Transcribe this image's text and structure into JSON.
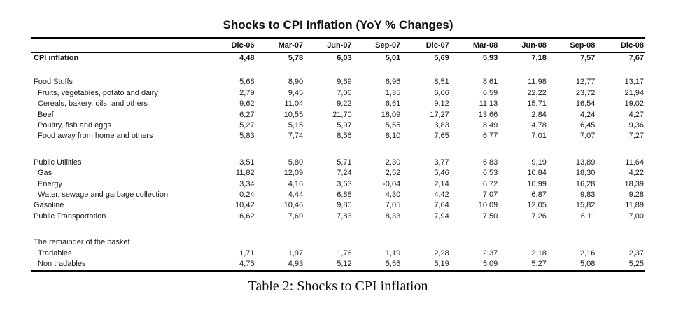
{
  "page": {
    "title": "Shocks to CPI Inflation (YoY % Changes)",
    "caption": "Table 2: Shocks to CPI inflation"
  },
  "chart_data": {
    "type": "table",
    "title": "Shocks to CPI Inflation (YoY % Changes)",
    "caption": "Table 2: Shocks to CPI inflation",
    "columns": [
      "Dic-06",
      "Mar-07",
      "Jun-07",
      "Sep-07",
      "Dic-07",
      "Mar-08",
      "Jun-08",
      "Sep-08",
      "Dic-08"
    ],
    "sections": [
      {
        "rows": [
          {
            "label": "CPI inflation",
            "bold": true,
            "indent": 0,
            "values": [
              "4,48",
              "5,78",
              "6,03",
              "5,01",
              "5,69",
              "5,93",
              "7,18",
              "7,57",
              "7,67"
            ]
          }
        ]
      },
      {
        "rows": [
          {
            "label": "Food Stuffs",
            "bold": false,
            "indent": 0,
            "values": [
              "5,68",
              "8,90",
              "9,69",
              "6,96",
              "8,51",
              "8,61",
              "11,98",
              "12,77",
              "13,17"
            ]
          },
          {
            "label": "Fruits, vegetables, potato and dairy",
            "bold": false,
            "indent": 1,
            "values": [
              "2,79",
              "9,45",
              "7,06",
              "1,35",
              "6,66",
              "6,59",
              "22,22",
              "23,72",
              "21,94"
            ]
          },
          {
            "label": "Cereals, bakery, oils, and others",
            "bold": false,
            "indent": 1,
            "values": [
              "9,62",
              "11,04",
              "9,22",
              "6,61",
              "9,12",
              "11,13",
              "15,71",
              "16,54",
              "19,02"
            ]
          },
          {
            "label": "Beef",
            "bold": false,
            "indent": 1,
            "values": [
              "6,27",
              "10,55",
              "21,70",
              "18,09",
              "17,27",
              "13,66",
              "2,84",
              "4,24",
              "4,27"
            ]
          },
          {
            "label": "Poultry, fish and eggs",
            "bold": false,
            "indent": 1,
            "values": [
              "5,27",
              "5,15",
              "5,97",
              "5,55",
              "3,83",
              "8,49",
              "4,78",
              "6,45",
              "9,36"
            ]
          },
          {
            "label": "Food away from home and others",
            "bold": false,
            "indent": 1,
            "values": [
              "5,83",
              "7,74",
              "8,56",
              "8,10",
              "7,65",
              "6,77",
              "7,01",
              "7,07",
              "7,27"
            ]
          }
        ]
      },
      {
        "rows": [
          {
            "label": "Public Utilities",
            "bold": false,
            "indent": 0,
            "values": [
              "3,51",
              "5,80",
              "5,71",
              "2,30",
              "3,77",
              "6,83",
              "9,19",
              "13,89",
              "11,64"
            ]
          },
          {
            "label": "Gas",
            "bold": false,
            "indent": 1,
            "values": [
              "11,82",
              "12,09",
              "7,24",
              "2,52",
              "5,46",
              "6,53",
              "10,84",
              "18,30",
              "4,22"
            ]
          },
          {
            "label": "Energy",
            "bold": false,
            "indent": 1,
            "values": [
              "3,34",
              "4,16",
              "3,63",
              "-0,04",
              "2,14",
              "6,72",
              "10,99",
              "16,28",
              "18,39"
            ]
          },
          {
            "label": "Water, sewage and garbage collection",
            "bold": false,
            "indent": 1,
            "values": [
              "0,24",
              "4,44",
              "6,88",
              "4,30",
              "4,42",
              "7,07",
              "6,87",
              "9,83",
              "9,28"
            ]
          },
          {
            "label": "Gasoline",
            "bold": false,
            "indent": 0,
            "values": [
              "10,42",
              "10,46",
              "9,80",
              "7,05",
              "7,64",
              "10,09",
              "12,05",
              "15,82",
              "11,89"
            ]
          },
          {
            "label": "Public Transportation",
            "bold": false,
            "indent": 0,
            "values": [
              "6,62",
              "7,69",
              "7,83",
              "8,33",
              "7,94",
              "7,50",
              "7,26",
              "6,11",
              "7,00"
            ]
          }
        ]
      },
      {
        "rows": [
          {
            "label": "The remainder of the basket",
            "bold": false,
            "indent": 0,
            "values": []
          },
          {
            "label": "Tradables",
            "bold": false,
            "indent": 1,
            "values": [
              "1,71",
              "1,97",
              "1,76",
              "1,19",
              "2,28",
              "2,37",
              "2,18",
              "2,16",
              "2,37"
            ]
          },
          {
            "label": "Non tradables",
            "bold": false,
            "indent": 1,
            "values": [
              "4,75",
              "4,93",
              "5,12",
              "5,55",
              "5,19",
              "5,09",
              "5,27",
              "5,08",
              "5,25"
            ]
          }
        ]
      }
    ]
  }
}
